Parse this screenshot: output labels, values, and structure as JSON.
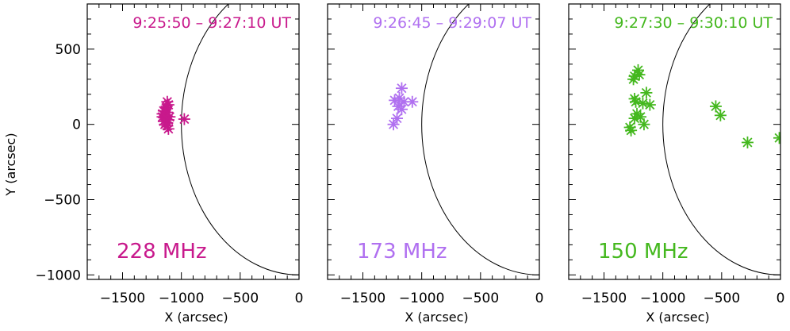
{
  "figure": {
    "ylabel": "Y (arcsec)"
  },
  "chart_data": [
    {
      "type": "scatter",
      "time_range": "9:25:50 – 9:27:10 UT",
      "frequency_label": "228 MHz",
      "color": "#c8198c",
      "xlabel": "X (arcsec)",
      "ylabel": "Y (arcsec)",
      "xlim": [
        -1800,
        0
      ],
      "ylim": [
        -1030,
        800
      ],
      "xticks": [
        -1500,
        -1000,
        -500,
        0
      ],
      "yticks": [
        -1000,
        -500,
        0,
        500
      ],
      "limb_radius_arcsec": 1000,
      "points": [
        {
          "x": -1120,
          "y": 150
        },
        {
          "x": -1110,
          "y": 130
        },
        {
          "x": -1130,
          "y": 110
        },
        {
          "x": -1150,
          "y": 90
        },
        {
          "x": -1120,
          "y": 80
        },
        {
          "x": -1140,
          "y": 60
        },
        {
          "x": -1160,
          "y": 50
        },
        {
          "x": -1130,
          "y": 40
        },
        {
          "x": -1110,
          "y": 30
        },
        {
          "x": -1150,
          "y": 20
        },
        {
          "x": -1120,
          "y": 10
        },
        {
          "x": -1140,
          "y": 0
        },
        {
          "x": -1120,
          "y": -10
        },
        {
          "x": -1110,
          "y": -30
        },
        {
          "x": -1100,
          "y": 50
        },
        {
          "x": -1160,
          "y": 70
        },
        {
          "x": -1125,
          "y": 120
        },
        {
          "x": -975,
          "y": 35
        }
      ]
    },
    {
      "type": "scatter",
      "time_range": "9:26:45 – 9:29:07 UT",
      "frequency_label": "173 MHz",
      "color": "#b070f0",
      "xlabel": "X (arcsec)",
      "ylabel": "Y (arcsec)",
      "xlim": [
        -1800,
        0
      ],
      "ylim": [
        -1030,
        800
      ],
      "xticks": [
        -1500,
        -1000,
        -500,
        0
      ],
      "yticks": [
        -1000,
        -500,
        0,
        500
      ],
      "limb_radius_arcsec": 1000,
      "points": [
        {
          "x": -1170,
          "y": 240
        },
        {
          "x": -1230,
          "y": 160
        },
        {
          "x": -1190,
          "y": 175
        },
        {
          "x": -1150,
          "y": 150
        },
        {
          "x": -1080,
          "y": 150
        },
        {
          "x": -1200,
          "y": 120
        },
        {
          "x": -1170,
          "y": 100
        },
        {
          "x": -1210,
          "y": 40
        },
        {
          "x": -1240,
          "y": 0
        }
      ]
    },
    {
      "type": "scatter",
      "time_range": "9:27:30 – 9:30:10 UT",
      "frequency_label": "150 MHz",
      "color": "#44b81e",
      "xlabel": "X (arcsec)",
      "ylabel": "Y (arcsec)",
      "xlim": [
        -1800,
        0
      ],
      "ylim": [
        -1030,
        800
      ],
      "xticks": [
        -1500,
        -1000,
        -500,
        0
      ],
      "yticks": [
        -1000,
        -500,
        0,
        500
      ],
      "limb_radius_arcsec": 1000,
      "points": [
        {
          "x": -1210,
          "y": 360
        },
        {
          "x": -1240,
          "y": 320
        },
        {
          "x": -1200,
          "y": 330
        },
        {
          "x": -1250,
          "y": 300
        },
        {
          "x": -1240,
          "y": 170
        },
        {
          "x": -1230,
          "y": 150
        },
        {
          "x": -1140,
          "y": 210
        },
        {
          "x": -1170,
          "y": 140
        },
        {
          "x": -1110,
          "y": 130
        },
        {
          "x": -1220,
          "y": 70
        },
        {
          "x": -1190,
          "y": 50
        },
        {
          "x": -1240,
          "y": 40
        },
        {
          "x": -1160,
          "y": 0
        },
        {
          "x": -1280,
          "y": -20
        },
        {
          "x": -1270,
          "y": -40
        },
        {
          "x": -550,
          "y": 120
        },
        {
          "x": -510,
          "y": 60
        },
        {
          "x": -280,
          "y": -120
        },
        {
          "x": -10,
          "y": -90
        }
      ]
    }
  ]
}
